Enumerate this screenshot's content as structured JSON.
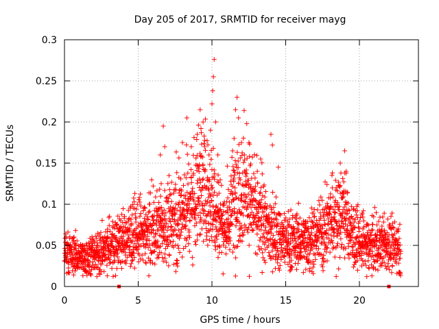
{
  "chart_data": {
    "type": "scatter",
    "title": "Day 205 of 2017, SRMTID for receiver mayg",
    "xlabel": "GPS time / hours",
    "ylabel": "SRMTID / TECUs",
    "xlim": [
      0,
      24
    ],
    "ylim": [
      0,
      0.3
    ],
    "x_ticks": [
      0,
      5,
      10,
      15,
      20
    ],
    "x_tick_labels": [
      "0",
      "5",
      "10",
      "15",
      "20"
    ],
    "y_ticks": [
      0,
      0.05,
      0.1,
      0.15,
      0.2,
      0.25,
      0.3
    ],
    "y_tick_labels": [
      "0",
      "0.05",
      "0.1",
      "0.15",
      "0.2",
      "0.25",
      "0.3"
    ],
    "grid": true,
    "marker": "+",
    "colors": {
      "series": "#ff0000",
      "axis": "#000000",
      "grid": "#a0a0a0"
    },
    "series": [
      {
        "name": "SRMTID",
        "envelope": {
          "x": [
            0,
            1,
            2,
            3,
            4,
            5,
            6,
            7,
            8,
            8.5,
            9,
            9.5,
            10,
            10.5,
            11,
            11.5,
            12,
            12.5,
            13,
            14,
            15,
            16,
            17,
            18,
            18.5,
            19,
            19.5,
            20,
            21,
            22,
            22.8
          ],
          "y": [
            0.04,
            0.036,
            0.036,
            0.048,
            0.058,
            0.062,
            0.068,
            0.072,
            0.09,
            0.1,
            0.118,
            0.12,
            0.11,
            0.085,
            0.07,
            0.105,
            0.125,
            0.11,
            0.085,
            0.065,
            0.055,
            0.055,
            0.06,
            0.075,
            0.085,
            0.09,
            0.06,
            0.052,
            0.05,
            0.05,
            0.045
          ]
        },
        "points": [
          {
            "x": 6.5,
            "y": 0.16
          },
          {
            "x": 6.7,
            "y": 0.195
          },
          {
            "x": 6.8,
            "y": 0.17
          },
          {
            "x": 8.0,
            "y": 0.175
          },
          {
            "x": 8.3,
            "y": 0.205
          },
          {
            "x": 8.6,
            "y": 0.17
          },
          {
            "x": 9.0,
            "y": 0.185
          },
          {
            "x": 9.2,
            "y": 0.215
          },
          {
            "x": 9.4,
            "y": 0.2
          },
          {
            "x": 9.5,
            "y": 0.17
          },
          {
            "x": 9.8,
            "y": 0.16
          },
          {
            "x": 9.9,
            "y": 0.19
          },
          {
            "x": 10.0,
            "y": 0.222
          },
          {
            "x": 10.05,
            "y": 0.238
          },
          {
            "x": 10.1,
            "y": 0.255
          },
          {
            "x": 10.15,
            "y": 0.276
          },
          {
            "x": 10.25,
            "y": 0.2
          },
          {
            "x": 10.4,
            "y": 0.16
          },
          {
            "x": 11.4,
            "y": 0.165
          },
          {
            "x": 11.5,
            "y": 0.18
          },
          {
            "x": 11.6,
            "y": 0.215
          },
          {
            "x": 11.7,
            "y": 0.23
          },
          {
            "x": 11.8,
            "y": 0.205
          },
          {
            "x": 12.0,
            "y": 0.175
          },
          {
            "x": 12.2,
            "y": 0.16
          },
          {
            "x": 13.3,
            "y": 0.155
          },
          {
            "x": 14.0,
            "y": 0.185
          },
          {
            "x": 14.1,
            "y": 0.172
          },
          {
            "x": 14.5,
            "y": 0.145
          },
          {
            "x": 18.7,
            "y": 0.15
          },
          {
            "x": 19.0,
            "y": 0.165
          },
          {
            "x": 19.1,
            "y": 0.14
          },
          {
            "x": 2.2,
            "y": 0.012
          },
          {
            "x": 2.9,
            "y": 0.013
          },
          {
            "x": 14.3,
            "y": 0.022
          },
          {
            "x": 16.2,
            "y": 0.017
          },
          {
            "x": 20.5,
            "y": 0.012
          },
          {
            "x": 17.5,
            "y": 0.024
          }
        ]
      }
    ],
    "x_markers": [
      3.7,
      22.0
    ]
  }
}
